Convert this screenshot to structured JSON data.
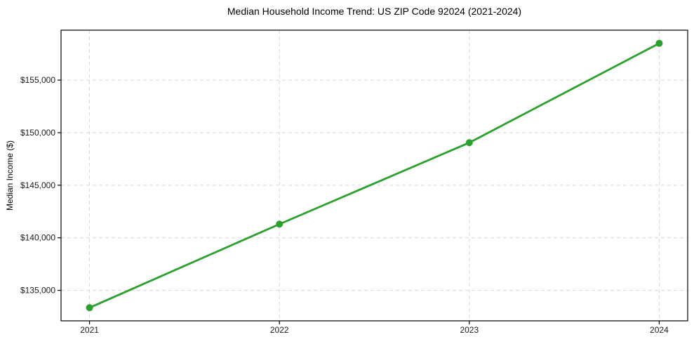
{
  "figure": {
    "background_color": "#ffffff"
  },
  "chart_data": {
    "type": "line",
    "title": "Median Household Income Trend: US ZIP Code 92024 (2021-2024)",
    "xlabel": "",
    "ylabel": "Median Income ($)",
    "categories": [
      "2021",
      "2022",
      "2023",
      "2024"
    ],
    "series": [
      {
        "values": [
          133350,
          141300,
          149050,
          158500
        ],
        "color": "#2ca02c",
        "marker": "circle",
        "marker_radius": 5,
        "line_width": 2.8
      }
    ],
    "yticks": [
      135000,
      140000,
      145000,
      150000,
      155000
    ],
    "ytick_labels": [
      "$135,000",
      "$140,000",
      "$145,000",
      "$150,000",
      "$155,000"
    ],
    "ylim": [
      132100,
      159750
    ],
    "grid": true,
    "grid_color": "#d6d6d6",
    "grid_dash": "5,4",
    "spine_color": "#000000",
    "tick_color": "#000000",
    "tick_label_color": "#1a1a1a",
    "legend_position": "none"
  }
}
